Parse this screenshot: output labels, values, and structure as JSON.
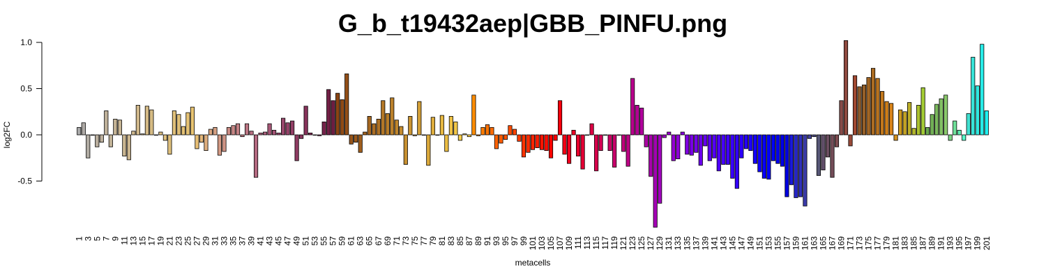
{
  "chart_data": {
    "type": "bar",
    "title": "G_b_t19432aep|GBB_PINFU.png",
    "xlabel": "metacells",
    "ylabel": "log2FC",
    "ylim": [
      -1.0,
      1.0
    ],
    "yticks": [
      1.0,
      0.5,
      0.0,
      -0.5
    ],
    "ytick_labels": [
      "1.0",
      "0.5",
      "0.0",
      "-0.5"
    ],
    "xtick_every": 2,
    "grid": false,
    "legend": "none",
    "categories": [
      "1",
      "2",
      "3",
      "4",
      "5",
      "6",
      "7",
      "8",
      "9",
      "10",
      "11",
      "12",
      "13",
      "14",
      "15",
      "16",
      "17",
      "18",
      "19",
      "20",
      "21",
      "22",
      "23",
      "24",
      "25",
      "26",
      "27",
      "28",
      "29",
      "30",
      "31",
      "32",
      "33",
      "34",
      "35",
      "36",
      "37",
      "38",
      "39",
      "40",
      "41",
      "42",
      "43",
      "44",
      "45",
      "46",
      "47",
      "48",
      "49",
      "50",
      "51",
      "52",
      "53",
      "54",
      "55",
      "56",
      "57",
      "58",
      "59",
      "60",
      "61",
      "62",
      "63",
      "64",
      "65",
      "66",
      "67",
      "68",
      "69",
      "70",
      "71",
      "72",
      "73",
      "74",
      "75",
      "76",
      "77",
      "78",
      "79",
      "80",
      "81",
      "82",
      "83",
      "84",
      "85",
      "86",
      "87",
      "88",
      "89",
      "90",
      "91",
      "92",
      "93",
      "94",
      "95",
      "96",
      "97",
      "98",
      "99",
      "100",
      "101",
      "102",
      "103",
      "104",
      "105",
      "106",
      "107",
      "108",
      "109",
      "110",
      "111",
      "112",
      "113",
      "114",
      "115",
      "116",
      "117",
      "118",
      "119",
      "120",
      "121",
      "122",
      "123",
      "124",
      "125",
      "126",
      "127",
      "128",
      "129",
      "130",
      "131",
      "132",
      "133",
      "134",
      "135",
      "136",
      "137",
      "138",
      "139",
      "140",
      "141",
      "142",
      "143",
      "144",
      "145",
      "146",
      "147",
      "148",
      "149",
      "150",
      "151",
      "152",
      "153",
      "154",
      "155",
      "156",
      "157",
      "158",
      "159",
      "160",
      "161",
      "162",
      "163",
      "164",
      "165",
      "166",
      "167",
      "168",
      "169",
      "170",
      "171",
      "172",
      "173",
      "174",
      "175",
      "176",
      "177",
      "178",
      "179",
      "180",
      "181",
      "182",
      "183",
      "184",
      "185",
      "186",
      "187",
      "188",
      "189",
      "190",
      "191",
      "192",
      "193",
      "194",
      "195",
      "196",
      "197",
      "198",
      "199",
      "200",
      "201"
    ],
    "values": [
      0.08,
      0.13,
      -0.25,
      0.0,
      -0.13,
      -0.08,
      0.26,
      -0.13,
      0.17,
      0.16,
      -0.23,
      -0.27,
      0.04,
      0.32,
      0.01,
      0.31,
      0.27,
      0.0,
      0.03,
      -0.06,
      -0.21,
      0.26,
      0.22,
      0.09,
      0.24,
      0.3,
      -0.15,
      -0.08,
      -0.17,
      0.06,
      0.08,
      -0.22,
      -0.18,
      0.08,
      0.1,
      0.12,
      -0.02,
      0.12,
      0.04,
      -0.46,
      0.02,
      0.03,
      0.12,
      0.05,
      0.02,
      0.18,
      0.13,
      0.15,
      -0.28,
      -0.04,
      0.31,
      0.02,
      0.0,
      -0.01,
      0.14,
      0.49,
      0.37,
      0.45,
      0.38,
      0.66,
      -0.1,
      -0.08,
      -0.19,
      0.03,
      0.2,
      0.12,
      0.17,
      0.37,
      0.23,
      0.4,
      0.16,
      0.09,
      -0.32,
      0.2,
      -0.01,
      0.36,
      0.0,
      -0.33,
      0.19,
      0.0,
      0.21,
      -0.18,
      0.2,
      0.14,
      -0.06,
      0.01,
      -0.02,
      0.43,
      -0.01,
      0.08,
      0.11,
      0.08,
      -0.15,
      -0.09,
      -0.05,
      0.1,
      0.06,
      -0.07,
      -0.24,
      -0.19,
      -0.16,
      -0.14,
      -0.16,
      -0.17,
      -0.25,
      -0.06,
      0.37,
      -0.21,
      -0.31,
      0.05,
      -0.23,
      -0.37,
      0.0,
      0.12,
      -0.39,
      -0.17,
      0.0,
      -0.17,
      -0.35,
      0.0,
      -0.18,
      -0.34,
      0.61,
      0.32,
      0.29,
      -0.13,
      -0.45,
      -1.0,
      -0.74,
      -0.03,
      0.03,
      -0.28,
      -0.26,
      0.03,
      -0.21,
      -0.22,
      -0.19,
      -0.33,
      -0.12,
      -0.28,
      -0.25,
      -0.39,
      -0.32,
      -0.32,
      -0.47,
      -0.58,
      -0.25,
      -0.15,
      -0.17,
      -0.31,
      -0.4,
      -0.47,
      -0.48,
      -0.28,
      -0.31,
      -0.34,
      -0.67,
      -0.54,
      -0.68,
      -0.67,
      -0.77,
      -0.04,
      -0.02,
      -0.44,
      -0.38,
      -0.24,
      -0.46,
      -0.13,
      0.37,
      1.02,
      -0.12,
      0.64,
      0.52,
      0.54,
      0.62,
      0.72,
      0.61,
      0.47,
      0.36,
      0.34,
      -0.06,
      0.27,
      0.25,
      0.35,
      0.07,
      0.32,
      0.51,
      0.08,
      0.22,
      0.33,
      0.39,
      0.43,
      -0.06,
      0.15,
      0.05,
      -0.06,
      0.23,
      0.84,
      0.53,
      0.98,
      0.26
    ],
    "colors": [
      "#a9a9a9",
      "#aeaaa6",
      "#b1aca3",
      "#b5ada1",
      "#b9ae9e",
      "#bbaf9c",
      "#bfb19a",
      "#c1b297",
      "#c4b395",
      "#c6b493",
      "#c8b591",
      "#cbb68f",
      "#cdb78d",
      "#d0b88b",
      "#d2b989",
      "#d4ba86",
      "#d6bb84",
      "#d8bc82",
      "#dabd80",
      "#dcbe7d",
      "#debf7b",
      "#e0c07a",
      "#e2c178",
      "#e4c276",
      "#e6c374",
      "#e8c472",
      "#e8bf75",
      "#e4b77a",
      "#dfae7d",
      "#dba780",
      "#d7a183",
      "#d39a84",
      "#cf9485",
      "#cb8d85",
      "#c78785",
      "#c38185",
      "#bf7b84",
      "#bb7583",
      "#b76f82",
      "#b36980",
      "#af637e",
      "#ab5e7b",
      "#a75878",
      "#a35375",
      "#9f4e71",
      "#9a496d",
      "#96446a",
      "#923f66",
      "#8e3b62",
      "#8a365e",
      "#86325a",
      "#822e56",
      "#7e2a52",
      "#7a264e",
      "#76224a",
      "#722046",
      "#6e1d42",
      "#8b4513",
      "#8f4a15",
      "#934f17",
      "#975419",
      "#9b591b",
      "#9f5e1d",
      "#a3631f",
      "#a76821",
      "#ab6d23",
      "#af7225",
      "#b37727",
      "#b77c29",
      "#bb812b",
      "#bf862d",
      "#c38b2f",
      "#c79031",
      "#cb9533",
      "#cf9a35",
      "#d39f37",
      "#d7a439",
      "#dba93b",
      "#dfae3d",
      "#e3b33f",
      "#e7b841",
      "#ebbd43",
      "#efc245",
      "#f3c747",
      "#f7cc49",
      "#fbd14b",
      "#ffd64d",
      "#ff8c00",
      "#ff8400",
      "#ff7c00",
      "#ff7400",
      "#ff6c00",
      "#ff6400",
      "#ff5c00",
      "#ff5400",
      "#ff4c00",
      "#ff4400",
      "#ff3c00",
      "#ff3400",
      "#ff2c00",
      "#ff2400",
      "#ff1c00",
      "#ff1400",
      "#ff0c00",
      "#ff0400",
      "#fc0004",
      "#f8000c",
      "#f40014",
      "#f0001c",
      "#ec0024",
      "#e8002c",
      "#e40034",
      "#e0003c",
      "#dc0044",
      "#d8004c",
      "#d40054",
      "#d0005c",
      "#cc0064",
      "#c8006c",
      "#c40074",
      "#c0007c",
      "#bc0084",
      "#b8008c",
      "#b40094",
      "#b0009c",
      "#ac00a4",
      "#a800ac",
      "#a400b4",
      "#a000bc",
      "#9c00c4",
      "#9800cc",
      "#9400d3",
      "#8d00d8",
      "#8600dc",
      "#7f00e0",
      "#7800e4",
      "#7100e8",
      "#6a00ec",
      "#6300f0",
      "#5c00f4",
      "#5500f8",
      "#4e00fc",
      "#4700ff",
      "#4000ff",
      "#3900ff",
      "#3200ff",
      "#2b00ff",
      "#2400ff",
      "#1d00ff",
      "#1600ff",
      "#0f00ff",
      "#0800ff",
      "#0100ff",
      "#0000f8",
      "#0000f0",
      "#0000e8",
      "#0000e0",
      "#1a1ad8",
      "#2626c8",
      "#3030b8",
      "#3a3aa8",
      "#444498",
      "#4e4e88",
      "#585878",
      "#624f6a",
      "#6b4e60",
      "#744d58",
      "#7d4c50",
      "#864b48",
      "#8f4a40",
      "#984938",
      "#a14830",
      "#8b5a2b",
      "#966028",
      "#a16625",
      "#ac6c22",
      "#b7721f",
      "#c2781c",
      "#cd7e19",
      "#d8841a",
      "#d4901c",
      "#cc9a20",
      "#c4a424",
      "#bcae28",
      "#b4b82c",
      "#acc230",
      "#a4cc34",
      "#6aa84f",
      "#72b056",
      "#7ab85d",
      "#82c064",
      "#8ac86b",
      "#7dd482",
      "#70e099",
      "#63ecb0",
      "#56f8c7",
      "#40e0d0",
      "#38e4d8",
      "#30e8e0",
      "#28ece8",
      "#20f0f0",
      "#18f4f4",
      "#10f8f8",
      "#08fcfc",
      "#00ffff"
    ]
  }
}
